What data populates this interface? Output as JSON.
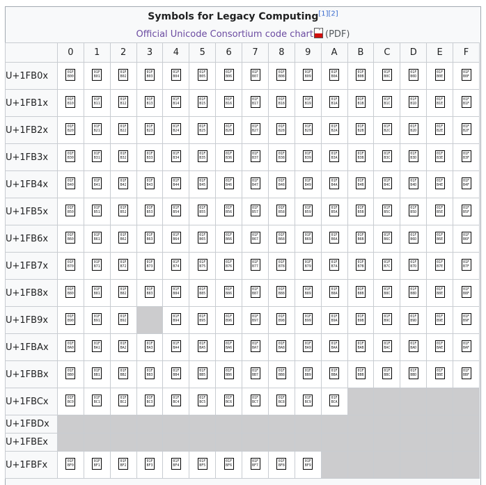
{
  "header": {
    "title": "Symbols for Legacy Computing",
    "refs": [
      "[1]",
      "[2]"
    ],
    "chart_link": "Official Unicode Consortium code chart",
    "pdf_label": "(PDF)"
  },
  "columns": [
    "0",
    "1",
    "2",
    "3",
    "4",
    "5",
    "6",
    "7",
    "8",
    "9",
    "A",
    "B",
    "C",
    "D",
    "E",
    "F"
  ],
  "rows": [
    {
      "label": "U+1FB0x",
      "code": "B0",
      "assigned": [
        0,
        1,
        2,
        3,
        4,
        5,
        6,
        7,
        8,
        9,
        10,
        11,
        12,
        13,
        14,
        15
      ]
    },
    {
      "label": "U+1FB1x",
      "code": "B1",
      "assigned": [
        0,
        1,
        2,
        3,
        4,
        5,
        6,
        7,
        8,
        9,
        10,
        11,
        12,
        13,
        14,
        15
      ]
    },
    {
      "label": "U+1FB2x",
      "code": "B2",
      "assigned": [
        0,
        1,
        2,
        3,
        4,
        5,
        6,
        7,
        8,
        9,
        10,
        11,
        12,
        13,
        14,
        15
      ]
    },
    {
      "label": "U+1FB3x",
      "code": "B3",
      "assigned": [
        0,
        1,
        2,
        3,
        4,
        5,
        6,
        7,
        8,
        9,
        10,
        11,
        12,
        13,
        14,
        15
      ]
    },
    {
      "label": "U+1FB4x",
      "code": "B4",
      "assigned": [
        0,
        1,
        2,
        3,
        4,
        5,
        6,
        7,
        8,
        9,
        10,
        11,
        12,
        13,
        14,
        15
      ]
    },
    {
      "label": "U+1FB5x",
      "code": "B5",
      "assigned": [
        0,
        1,
        2,
        3,
        4,
        5,
        6,
        7,
        8,
        9,
        10,
        11,
        12,
        13,
        14,
        15
      ]
    },
    {
      "label": "U+1FB6x",
      "code": "B6",
      "assigned": [
        0,
        1,
        2,
        3,
        4,
        5,
        6,
        7,
        8,
        9,
        10,
        11,
        12,
        13,
        14,
        15
      ]
    },
    {
      "label": "U+1FB7x",
      "code": "B7",
      "assigned": [
        0,
        1,
        2,
        3,
        4,
        5,
        6,
        7,
        8,
        9,
        10,
        11,
        12,
        13,
        14,
        15
      ]
    },
    {
      "label": "U+1FB8x",
      "code": "B8",
      "assigned": [
        0,
        1,
        2,
        3,
        4,
        5,
        6,
        7,
        8,
        9,
        10,
        11,
        12,
        13,
        14,
        15
      ]
    },
    {
      "label": "U+1FB9x",
      "code": "B9",
      "assigned": [
        0,
        1,
        2,
        4,
        5,
        6,
        7,
        8,
        9,
        10,
        11,
        12,
        13,
        14,
        15
      ]
    },
    {
      "label": "U+1FBAx",
      "code": "BA",
      "assigned": [
        0,
        1,
        2,
        3,
        4,
        5,
        6,
        7,
        8,
        9,
        10,
        11,
        12,
        13,
        14,
        15
      ]
    },
    {
      "label": "U+1FBBx",
      "code": "BB",
      "assigned": [
        0,
        1,
        2,
        3,
        4,
        5,
        6,
        7,
        8,
        9,
        10,
        11,
        12,
        13,
        14,
        15
      ]
    },
    {
      "label": "U+1FBCx",
      "code": "BC",
      "assigned": [
        0,
        1,
        2,
        3,
        4,
        5,
        6,
        7,
        8,
        9,
        10
      ]
    },
    {
      "label": "U+1FBDx",
      "code": "BD",
      "assigned": []
    },
    {
      "label": "U+1FBEx",
      "code": "BE",
      "assigned": []
    },
    {
      "label": "U+1FBFx",
      "code": "BF",
      "assigned": [
        0,
        1,
        2,
        3,
        4,
        5,
        6,
        7,
        8,
        9
      ]
    }
  ],
  "glyph_prefix": "01F",
  "colors": {
    "empty_cell": "#ccccce",
    "border": "#c8ccd1",
    "link": "#6b4ba1",
    "ref": "#3366cc"
  }
}
